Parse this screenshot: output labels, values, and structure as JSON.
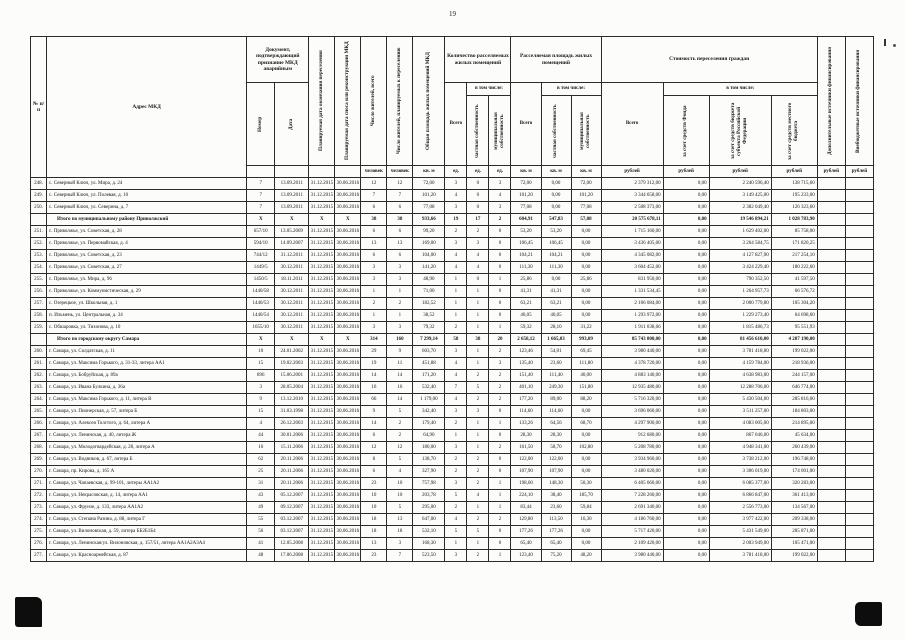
{
  "page": {
    "number": "19"
  },
  "table": {
    "header": {
      "col_num": "№ п/п",
      "address": "Адрес МКД",
      "doc_group": "Документ, подтверждающий признание МКД аварийным",
      "doc_number": "Номер",
      "doc_date": "Дата",
      "resettle_date": "Планируемая дата окончания переселения",
      "demolish_date": "Планируемая дата сноса или реконструкции МКД",
      "residents_total": "Число жителей, всего",
      "residents_planned": "Число жителей, планируемых к переселению",
      "total_area": "Общая площадь жилых помещений МКД",
      "qty_group": "Количество расселяемых жилых помещений",
      "area_group": "Расселяемая площадь жилых помещений",
      "cost_group": "Стоимость переселения граждан",
      "total": "Всего",
      "including": "в том числе:",
      "private": "частная собственность",
      "municipal": "муниципальная собственность",
      "cost_fund": "за счет средств Фонда",
      "cost_region": "за счет средств бюджета субъекта Российской Федерации",
      "cost_local": "за счет средств местного бюджета",
      "extra": "Дополнительные источники финансирования",
      "nonbudget": "Внебюджетные источники финансирования",
      "units": [
        "",
        "",
        "",
        "",
        "человек",
        "человек",
        "кв. м",
        "ед.",
        "ед.",
        "ед.",
        "кв. м",
        "кв. м",
        "кв. м",
        "рублей",
        "рублей",
        "рублей",
        "рублей",
        "рублей",
        "рублей"
      ]
    },
    "rows": [
      {
        "type": "data",
        "cells": [
          "248.",
          "с. Северный Ключ, ул. Мира, д. 24",
          "7",
          "13.09.2011",
          "31.12.2015",
          "30.06.2016",
          "12",
          "12",
          "72,00",
          "3",
          "0",
          "3",
          "72,00",
          "0,00",
          "72,00",
          "2 379 312,00",
          "0,00",
          "2 240 596,40",
          "138 715,60",
          "",
          ""
        ]
      },
      {
        "type": "data",
        "cells": [
          "249.",
          "с. Северный Ключ, ул. Полевая, д. 10",
          "7",
          "13.09.2011",
          "31.12.2015",
          "30.06.2016",
          "7",
          "7",
          "101,20",
          "4",
          "0",
          "4",
          "101,20",
          "0,00",
          "101,20",
          "3 344 658,00",
          "0,00",
          "3 149 425,00",
          "195 233,00",
          "",
          ""
        ]
      },
      {
        "type": "data",
        "cells": [
          "250.",
          "с. Северный Ключ, ул. Северина, д. 7",
          "7",
          "13.09.2011",
          "31.12.2015",
          "30.06.2016",
          "6",
          "6",
          "77,08",
          "3",
          "0",
          "3",
          "77,08",
          "0,00",
          "77,08",
          "2 508 373,00",
          "0,00",
          "2 382 049,40",
          "126 323,60",
          "",
          ""
        ]
      },
      {
        "type": "summary",
        "cells": [
          "",
          "Итого по муниципальному району Приволжский",
          "X",
          "X",
          "X",
          "X",
          "38",
          "38",
          "933,66",
          "19",
          "17",
          "2",
          "604,91",
          "547,83",
          "57,08",
          "20 575 678,11",
          "0,00",
          "19 546 894,21",
          "1 028 783,90",
          "",
          ""
        ]
      },
      {
        "type": "data",
        "cells": [
          "251.",
          "с. Приволжье, ул. Советская, д. 28",
          "657/10",
          "13.05.2009",
          "31.12.2015",
          "30.06.2016",
          "6",
          "6",
          "99,20",
          "2",
          "2",
          "0",
          "53,20",
          "53,20",
          "0,00",
          "1 715 160,00",
          "0,00",
          "1 629 402,00",
          "85 758,00",
          "",
          ""
        ]
      },
      {
        "type": "data",
        "cells": [
          "252.",
          "с. Приволжье, ул. Первомайская, д. 4",
          "594/10",
          "14.09.2007",
          "31.12.2015",
          "30.06.2016",
          "13",
          "13",
          "169,00",
          "3",
          "3",
          "0",
          "106,45",
          "106,45",
          "0,00",
          "3 436 405,00",
          "0,00",
          "3 264 584,75",
          "171 820,25",
          "",
          ""
        ]
      },
      {
        "type": "data",
        "cells": [
          "253.",
          "с. Приволжье, ул. Советская, д. 23",
          "744/12",
          "31.12.2011",
          "31.12.2015",
          "30.06.2016",
          "6",
          "6",
          "104,00",
          "4",
          "4",
          "0",
          "104,21",
          "104,21",
          "0,00",
          "4 345 082,00",
          "0,00",
          "4 127 827,90",
          "217 254,10",
          "",
          ""
        ]
      },
      {
        "type": "data",
        "cells": [
          "254.",
          "с. Приволжье, ул. Советская, д. 27",
          "1449/5",
          "30.12.2011",
          "31.12.2015",
          "30.06.2016",
          "3",
          "3",
          "141,20",
          "4",
          "4",
          "0",
          "111,30",
          "111,30",
          "0,00",
          "3 604 452,00",
          "0,00",
          "3 424 229,40",
          "180 222,60",
          "",
          ""
        ]
      },
      {
        "type": "data",
        "cells": [
          "255.",
          "с. Приволжье, ул. Мира, д. 96",
          "1450/5",
          "18.11.2011",
          "31.12.2015",
          "30.06.2016",
          "3",
          "3",
          "48,90",
          "1",
          "0",
          "1",
          "25,86",
          "0,00",
          "25,86",
          "831 950,00",
          "0,00",
          "790 352,50",
          "41 597,50",
          "",
          ""
        ]
      },
      {
        "type": "data",
        "cells": [
          "256.",
          "с. Приволжье, ул. Коммунистическая, д. 29",
          "1440/58",
          "30.12.2011",
          "31.12.2015",
          "30.06.2016",
          "1",
          "1",
          "71,00",
          "1",
          "1",
          "0",
          "41,31",
          "41,31",
          "0,00",
          "1 331 534,45",
          "0,00",
          "1 264 957,73",
          "66 576,72",
          "",
          ""
        ]
      },
      {
        "type": "data",
        "cells": [
          "257.",
          "с. Озерецкое, ул. Школьная, д. 1",
          "1440/53",
          "30.12.2011",
          "31.12.2015",
          "30.06.2016",
          "2",
          "2",
          "182,52",
          "1",
          "1",
          "0",
          "63,21",
          "63,21",
          "0,00",
          "2 106 084,00",
          "0,00",
          "2 000 779,80",
          "105 304,20",
          "",
          ""
        ]
      },
      {
        "type": "data",
        "cells": [
          "258.",
          "п. Ильмень, ул. Центральная, д. 34",
          "1440/54",
          "30.12.2011",
          "31.12.2015",
          "30.06.2016",
          "1",
          "1",
          "38,52",
          "1",
          "1",
          "0",
          "40,05",
          "40,05",
          "0,00",
          "1 293 972,00",
          "0,00",
          "1 229 273,40",
          "64 698,60",
          "",
          ""
        ]
      },
      {
        "type": "data",
        "cells": [
          "259.",
          "с. Обшаровка, ул. Тихонова, д. 10",
          "1655/10",
          "30.12.2011",
          "31.12.2015",
          "30.06.2016",
          "3",
          "3",
          "79,32",
          "2",
          "1",
          "1",
          "59,32",
          "28,10",
          "31,22",
          "1 911 038,66",
          "0,00",
          "1 815 486,73",
          "95 551,93",
          "",
          ""
        ]
      },
      {
        "type": "summary",
        "cells": [
          "",
          "Итого по городскому округу Самара",
          "X",
          "X",
          "X",
          "X",
          "314",
          "160",
          "7 299,14",
          "58",
          "38",
          "20",
          "2 658,12",
          "1 665,03",
          "993,09",
          "85 743 800,00",
          "0,00",
          "81 456 610,00",
          "4 287 190,00",
          "",
          ""
        ]
      },
      {
        "type": "data",
        "cells": [
          "260.",
          "г. Самара, ул. Солдатская, д. 11",
          "10",
          "24.01.2002",
          "31.12.2015",
          "30.06.2016",
          "29",
          "9",
          "603,70",
          "3",
          "1",
          "2",
          "123,46",
          "54,01",
          "69,45",
          "3 980 440,00",
          "0,00",
          "3 781 418,00",
          "199 022,00",
          "",
          ""
        ]
      },
      {
        "type": "data",
        "cells": [
          "261.",
          "г. Самара, ул. Максима Горького, д. 31-33, литера АА1",
          "15",
          "19.02.2003",
          "31.12.2015",
          "30.06.2016",
          "19",
          "11",
          "451,88",
          "4",
          "1",
          "3",
          "135,40",
          "23,60",
          "111,80",
          "4 378 720,00",
          "0,00",
          "4 159 784,00",
          "218 936,00",
          "",
          ""
        ]
      },
      {
        "type": "data",
        "cells": [
          "262.",
          "г. Самара, ул. Бобруйская, д. 89а",
          "896",
          "15.06.2001",
          "31.12.2015",
          "30.06.2016",
          "14",
          "14",
          "171,20",
          "4",
          "2",
          "2",
          "151,40",
          "111,40",
          "40,00",
          "4 883 140,00",
          "0,00",
          "4 638 983,00",
          "244 157,00",
          "",
          ""
        ]
      },
      {
        "type": "data",
        "cells": [
          "263.",
          "г. Самара, ул. Ивана Булкина, д. 36а",
          "3",
          "28.05.2004",
          "31.12.2015",
          "30.06.2016",
          "16",
          "16",
          "532,40",
          "7",
          "5",
          "2",
          "401,10",
          "249,30",
          "151,80",
          "12 935 480,00",
          "0,00",
          "12 288 706,00",
          "646 774,00",
          "",
          ""
        ]
      },
      {
        "type": "data",
        "cells": [
          "264.",
          "г. Самара, ул. Максима Горького, д. 11, литера В",
          "9",
          "13.12.2010",
          "31.12.2015",
          "30.06.2016",
          "66",
          "14",
          "1 179,00",
          "4",
          "2",
          "2",
          "177,20",
          "89,00",
          "88,20",
          "5 716 320,00",
          "0,00",
          "5 430 504,00",
          "285 816,00",
          "",
          ""
        ]
      },
      {
        "type": "data",
        "cells": [
          "265.",
          "г. Самара, ул. Пионерская, д. 57, литера Б",
          "15",
          "31.03.1998",
          "31.12.2015",
          "30.06.2016",
          "9",
          "5",
          "342,40",
          "3",
          "3",
          "0",
          "114,60",
          "114,60",
          "0,00",
          "3 696 060,00",
          "0,00",
          "3 511 257,00",
          "184 803,00",
          "",
          ""
        ]
      },
      {
        "type": "data",
        "cells": [
          "266.",
          "г. Самара, ул. Алексея Толстого, д. 64, литера А",
          "4",
          "26.12.2003",
          "31.12.2015",
          "30.06.2016",
          "14",
          "2",
          "179,40",
          "2",
          "1",
          "1",
          "133,26",
          "64,56",
          "68,70",
          "4 297 900,00",
          "0,00",
          "4 083 005,00",
          "214 895,00",
          "",
          ""
        ]
      },
      {
        "type": "data",
        "cells": [
          "267.",
          "г. Самара, ул. Ленинская, д. 40, литера Ж",
          "44",
          "30.01.2006",
          "31.12.2015",
          "30.06.2016",
          "6",
          "2",
          "64,90",
          "1",
          "1",
          "0",
          "28,30",
          "28,30",
          "0,00",
          "912 680,00",
          "0,00",
          "867 046,00",
          "45 634,00",
          "",
          ""
        ]
      },
      {
        "type": "data",
        "cells": [
          "268.",
          "г. Самара, ул. Молодогвардейская, д. 28, литера А",
          "16",
          "15.11.2006",
          "31.12.2015",
          "30.06.2016",
          "12",
          "12",
          "180,00",
          "3",
          "1",
          "2",
          "161,50",
          "58,70",
          "102,80",
          "5 208 780,00",
          "0,00",
          "4 948 341,00",
          "260 439,00",
          "",
          ""
        ]
      },
      {
        "type": "data",
        "cells": [
          "269.",
          "г. Самара, ул. Водников, д. 67, литера Б",
          "62",
          "20.11.2006",
          "31.12.2015",
          "30.06.2016",
          "8",
          "5",
          "138,70",
          "2",
          "2",
          "0",
          "122,00",
          "122,00",
          "0,00",
          "3 934 960,00",
          "0,00",
          "3 738 212,00",
          "196 748,00",
          "",
          ""
        ]
      },
      {
        "type": "data",
        "cells": [
          "270.",
          "г. Самара, пр. Кирова, д. 165 А",
          "25",
          "20.11.2006",
          "31.12.2015",
          "30.06.2016",
          "6",
          "4",
          "327,90",
          "2",
          "2",
          "0",
          "107,90",
          "107,90",
          "0,00",
          "3 480 020,00",
          "0,00",
          "3 306 019,00",
          "174 001,00",
          "",
          ""
        ]
      },
      {
        "type": "data",
        "cells": [
          "271.",
          "г. Самара, ул. Чапаевская, д. 99-101, литеры АА1А2",
          "31",
          "20.11.2006",
          "31.12.2015",
          "30.06.2016",
          "23",
          "10",
          "757,98",
          "3",
          "2",
          "1",
          "198,60",
          "148,30",
          "50,30",
          "6 405 660,00",
          "0,00",
          "6 085 377,00",
          "320 283,00",
          "",
          ""
        ]
      },
      {
        "type": "data",
        "cells": [
          "272.",
          "г. Самара, ул. Некрасовская, д. 14, литера АА1",
          "43",
          "05.12.2007",
          "31.12.2015",
          "30.06.2016",
          "10",
          "10",
          "203,78",
          "5",
          "4",
          "1",
          "224,10",
          "38,40",
          "185,70",
          "7 228 260,00",
          "0,00",
          "6 866 847,00",
          "361 413,00",
          "",
          ""
        ]
      },
      {
        "type": "data",
        "cells": [
          "273.",
          "г. Самара, ул. Фрунзе, д. 133, литера АА1А2",
          "49",
          "09.12.2007",
          "31.12.2015",
          "30.06.2016",
          "10",
          "5",
          "295,00",
          "2",
          "1",
          "1",
          "83,44",
          "23,60",
          "59,84",
          "2 691 340,00",
          "0,00",
          "2 556 773,00",
          "134 567,00",
          "",
          ""
        ]
      },
      {
        "type": "data",
        "cells": [
          "274.",
          "г. Самара, ул. Степана Разина, д. 88, литера Г",
          "55",
          "03.12.2007",
          "31.12.2015",
          "30.06.2016",
          "18",
          "13",
          "647,00",
          "4",
          "2",
          "2",
          "129,80",
          "113,50",
          "16,30",
          "4 186 760,00",
          "0,00",
          "3 977 422,00",
          "209 338,00",
          "",
          ""
        ]
      },
      {
        "type": "data",
        "cells": [
          "275.",
          "г. Самара, ул. Вилоновская, д. 59, литера ББ2Б1Б4",
          "56",
          "03.12.2007",
          "31.12.2015",
          "30.06.2016",
          "18",
          "18",
          "532,10",
          "5",
          "5",
          "0",
          "177,26",
          "177,26",
          "0,00",
          "5 717 420,00",
          "0,00",
          "5 431 549,00",
          "285 871,00",
          "",
          ""
        ]
      },
      {
        "type": "data",
        "cells": [
          "276.",
          "г. Самара, ул. Ленинская/ул. Вилоновская, д. 157/51, литера АА1А2А3А4",
          "41",
          "12.05.2008",
          "31.12.2015",
          "30.06.2016",
          "13",
          "3",
          "168,30",
          "1",
          "1",
          "0",
          "65,40",
          "65,40",
          "0,00",
          "2 109 420,00",
          "0,00",
          "2 003 949,00",
          "105 471,00",
          "",
          ""
        ]
      },
      {
        "type": "data",
        "cells": [
          "277.",
          "г. Самара, ул. Красноармейская, д. 87",
          "48",
          "17.06.2008",
          "31.12.2015",
          "30.06.2016",
          "23",
          "7",
          "523,50",
          "3",
          "2",
          "1",
          "123,40",
          "75,20",
          "48,20",
          "3 980 440,00",
          "0,00",
          "3 781 418,00",
          "199 022,00",
          "",
          ""
        ]
      }
    ]
  }
}
